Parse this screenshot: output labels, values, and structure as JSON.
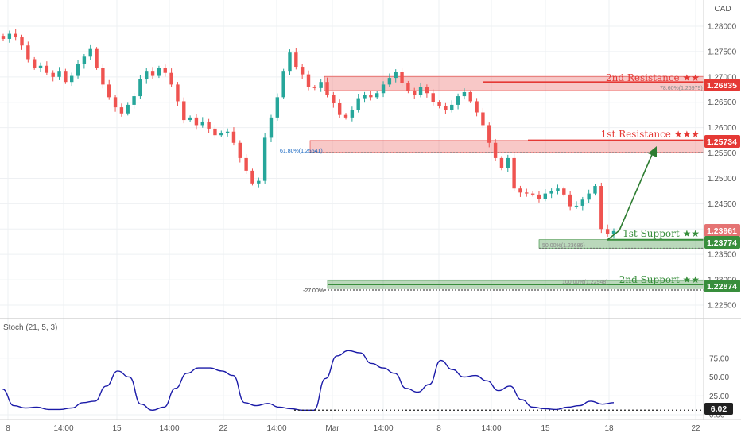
{
  "currency": "CAD",
  "price_axis": {
    "labels": [
      "1.28000",
      "1.27500",
      "1.27000",
      "1.26500",
      "1.26000",
      "1.25500",
      "1.25000",
      "1.24500",
      "1.24000",
      "1.23500",
      "1.23000",
      "1.22500"
    ]
  },
  "time_axis": {
    "labels": [
      "8",
      "14:00",
      "15",
      "14:00",
      "22",
      "14:00",
      "Mar",
      "14:00",
      "8",
      "14:00",
      "15",
      "18",
      "22"
    ]
  },
  "levels": [
    {
      "id": "res2",
      "label": "2nd Resistance ★★",
      "value": "1.26835",
      "color": "#e53935"
    },
    {
      "id": "res1",
      "label": "1st Resistance ★★★",
      "value": "1.25734",
      "color": "#e53935"
    },
    {
      "id": "sup1",
      "label": "1st Support ★★",
      "value": "1.23774",
      "color": "#388e3c"
    },
    {
      "id": "sup2",
      "label": "2nd Support ★★",
      "value": "1.22874",
      "color": "#388e3c"
    }
  ],
  "current_price": {
    "value": "1.23961",
    "color": "#e57373"
  },
  "fib_labels": {
    "res2": "78.60%(1.26979)",
    "res1": "61.80%(1.25541)",
    "sup1": "50.00%(1.23686)",
    "sup2": "100.00%(1.22948)",
    "ext": "-27.00%"
  },
  "stoch": {
    "title": "Stoch (21, 5, 3)",
    "axis_labels": [
      "75.00",
      "50.00",
      "25.00",
      "0.00"
    ],
    "current_value": "6.02",
    "line_color": "#1a1aa8"
  },
  "chart_data": {
    "type": "line",
    "price_ylim": [
      1.2225,
      1.2825
    ],
    "stoch_ylim": [
      0,
      100
    ],
    "close_series": [
      1.2775,
      1.2785,
      1.2778,
      1.2762,
      1.2735,
      1.2718,
      1.2722,
      1.2708,
      1.27,
      1.2712,
      1.269,
      1.2702,
      1.2725,
      1.274,
      1.2755,
      1.2718,
      1.2685,
      1.266,
      1.264,
      1.2628,
      1.2645,
      1.2662,
      1.2695,
      1.2712,
      1.2702,
      1.2718,
      1.2708,
      1.2685,
      1.2652,
      1.2615,
      1.262,
      1.2605,
      1.2612,
      1.2598,
      1.2585,
      1.259,
      1.2592,
      1.257,
      1.254,
      1.2515,
      1.249,
      1.2495,
      1.258,
      1.262,
      1.266,
      1.2712,
      1.2748,
      1.272,
      1.2705,
      1.268,
      1.2678,
      1.269,
      1.2665,
      1.2648,
      1.2625,
      1.262,
      1.2635,
      1.2658,
      1.2665,
      1.266,
      1.2668,
      1.2685,
      1.2698,
      1.271,
      1.2688,
      1.2672,
      1.2665,
      1.268,
      1.2668,
      1.265,
      1.2642,
      1.2635,
      1.2645,
      1.2662,
      1.267,
      1.2652,
      1.263,
      1.2605,
      1.257,
      1.254,
      1.252,
      1.254,
      1.248,
      1.2472,
      1.247,
      1.2468,
      1.246,
      1.247,
      1.2475,
      1.248,
      1.2468,
      1.2445,
      1.2446,
      1.2458,
      1.247,
      1.2485,
      1.24,
      1.239,
      1.2396
    ],
    "stoch_series": [
      34,
      12,
      9,
      10,
      7,
      7,
      9,
      16,
      18,
      38,
      58,
      50,
      14,
      6,
      10,
      35,
      55,
      62,
      62,
      58,
      52,
      16,
      12,
      15,
      10,
      8,
      6,
      6,
      48,
      78,
      85,
      82,
      68,
      62,
      55,
      35,
      30,
      40,
      72,
      60,
      50,
      52,
      45,
      32,
      38,
      20,
      10,
      8,
      7,
      10,
      12,
      18,
      14,
      16
    ],
    "stoch_reference": 6.02
  }
}
